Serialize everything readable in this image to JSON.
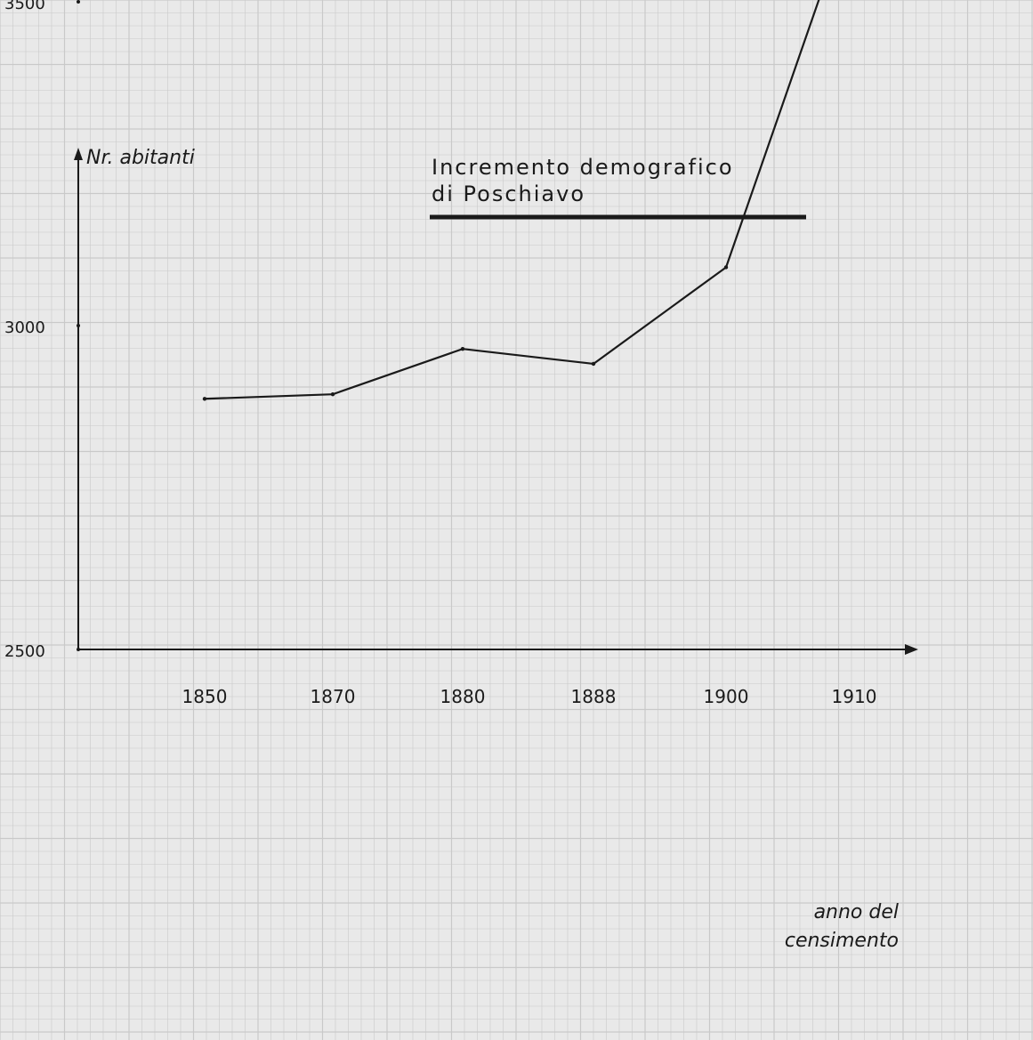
{
  "chart_data": {
    "type": "line",
    "title_line1": "Incremento demografico",
    "title_line2": "di Poschiavo",
    "ylabel": "Nr. abitanti",
    "xlabel_line1": "anno del",
    "xlabel_line2": "censimento",
    "categories": [
      "1850",
      "1870",
      "1880",
      "1888",
      "1900",
      "1910"
    ],
    "yticks": [
      "2500",
      "3000",
      "3500"
    ],
    "ylim": [
      2500,
      3660
    ],
    "series": [
      {
        "values": [
          2887,
          2894,
          2964,
          2941,
          3090,
          3660
        ]
      }
    ],
    "grid": true,
    "colors": {
      "background": "#e9e9e9",
      "grid": "#c9c9c9",
      "ink": "#1a1a1a"
    }
  }
}
